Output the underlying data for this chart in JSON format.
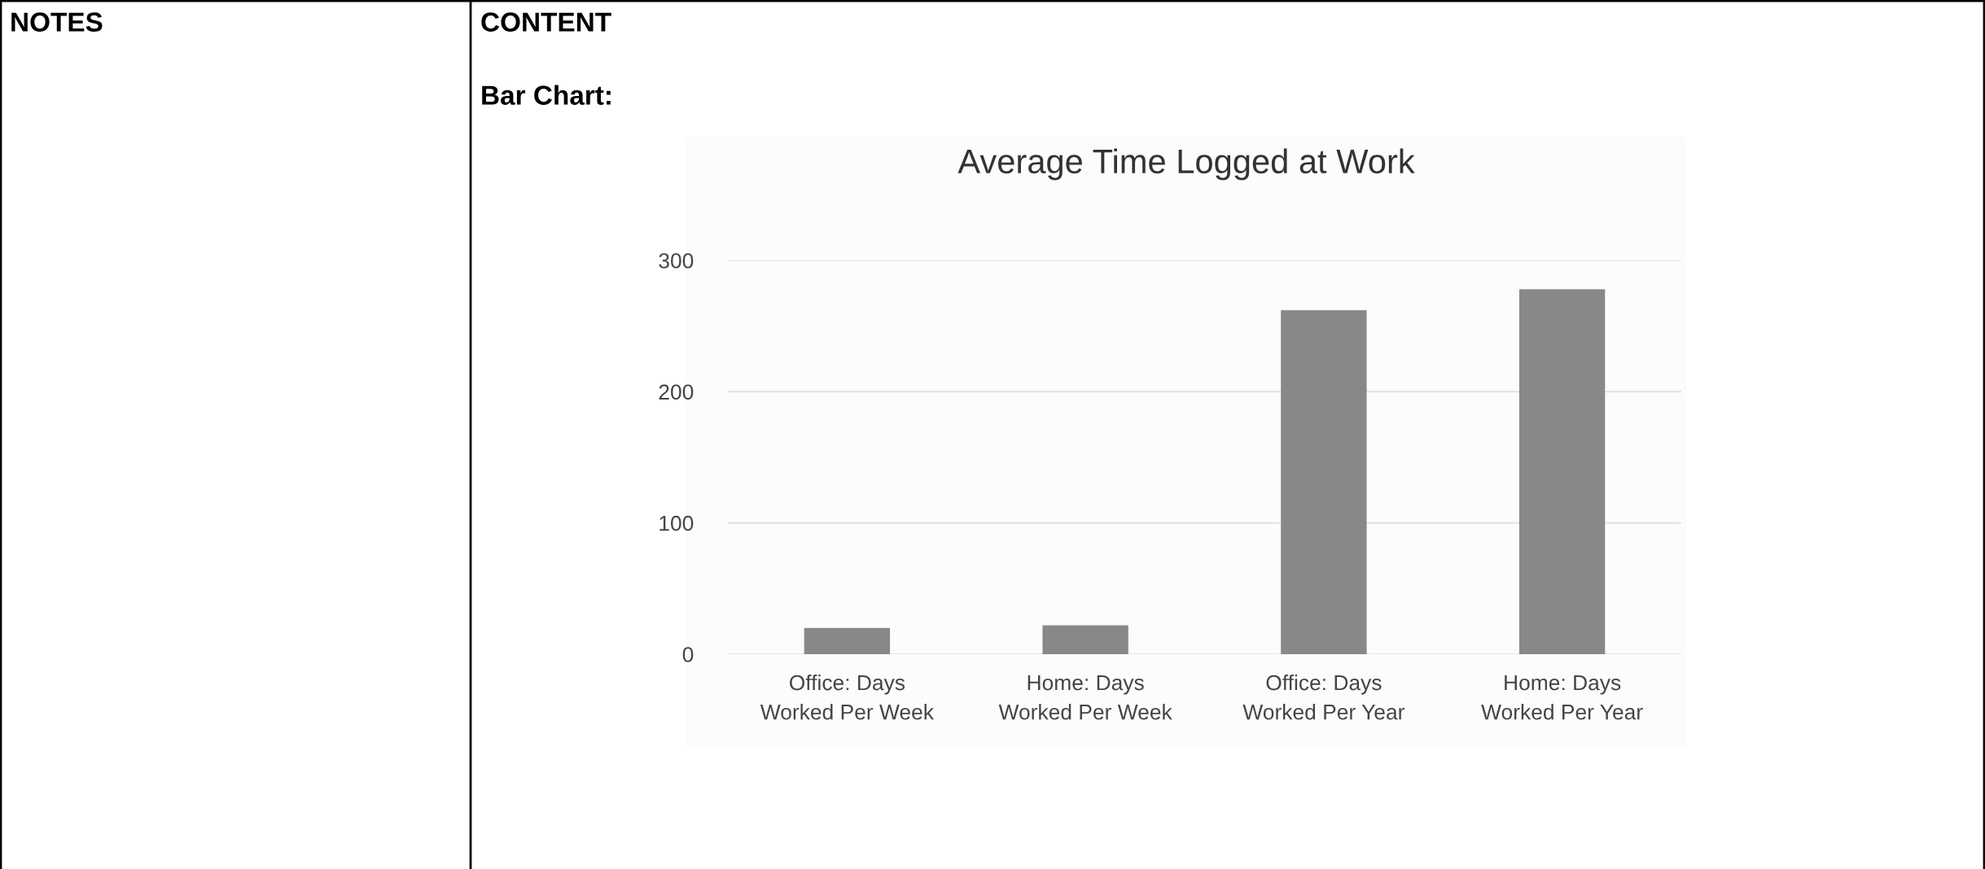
{
  "chart_data": {
    "type": "bar",
    "title": "Average Time Logged at Work",
    "annotations": [
      "NOTES",
      "CONTENT",
      "Bar Chart:"
    ],
    "categories": [
      "Office: Days Worked Per Week",
      "Home: Days Worked Per Week",
      "Office: Days Worked Per Year",
      "Home: Days Worked Per Year"
    ],
    "values": [
      20,
      22,
      262,
      278
    ],
    "color": "#888888",
    "ylim": [
      0,
      300
    ],
    "yticks": [
      0,
      100,
      200,
      300
    ],
    "grid": "y",
    "legend": false
  }
}
